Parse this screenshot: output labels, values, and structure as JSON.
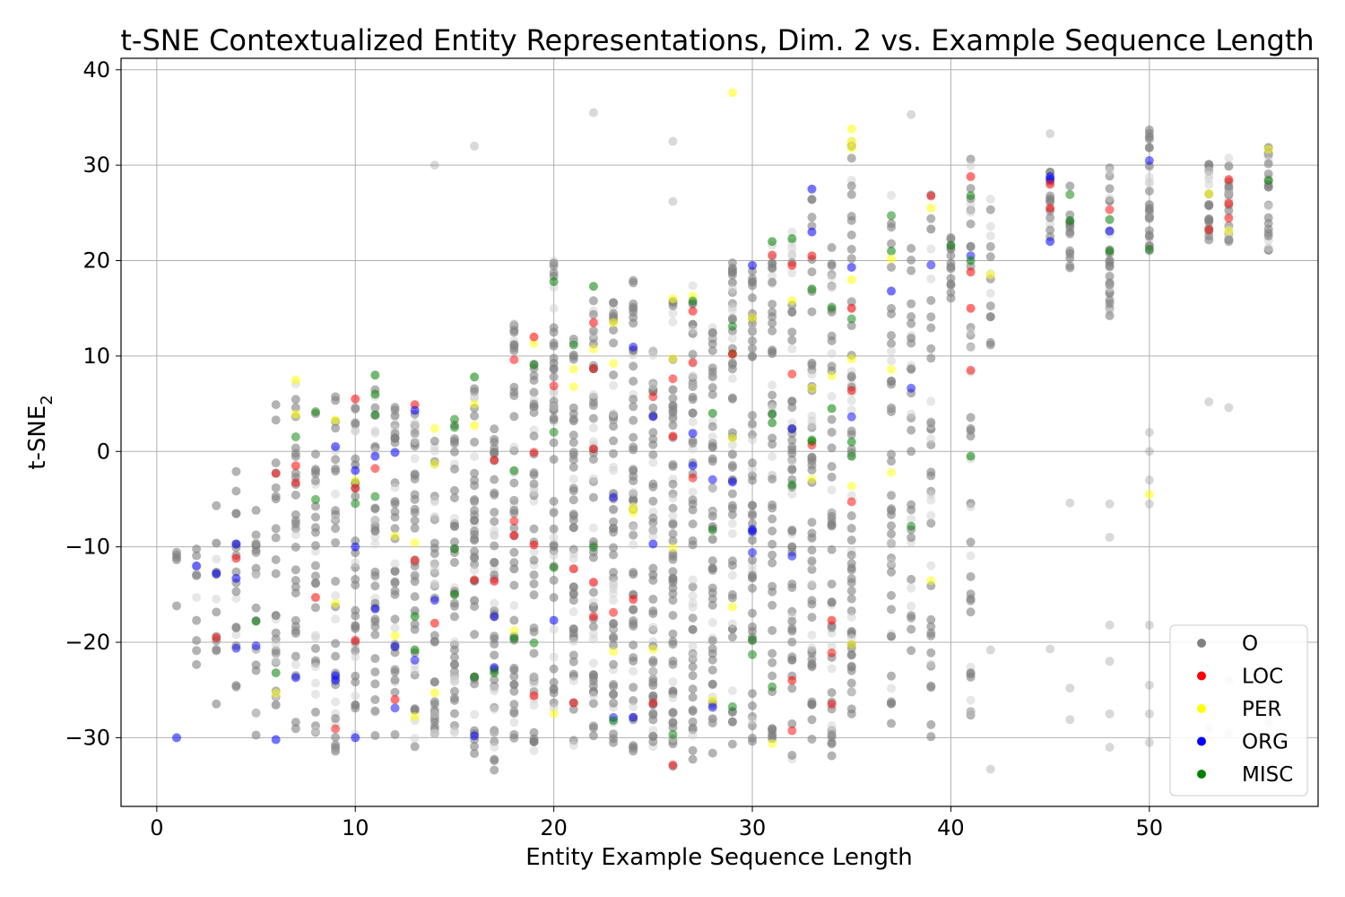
{
  "chart_data": {
    "type": "scatter",
    "title": "t-SNE Contextualized Entity Representations, Dim. 2 vs. Example Sequence Length",
    "xlabel": "Entity Example Sequence Length",
    "ylabel": "t-SNE",
    "ylabel_subscript": "2",
    "xlim": [
      -1.8,
      58.5
    ],
    "ylim": [
      -37.2,
      41.2
    ],
    "xticks": [
      0,
      10,
      20,
      30,
      40,
      50
    ],
    "xtick_labels": [
      "0",
      "10",
      "20",
      "30",
      "40",
      "50"
    ],
    "yticks": [
      -30,
      -20,
      -10,
      0,
      10,
      20,
      30,
      40
    ],
    "ytick_labels": [
      "−30",
      "−20",
      "−10",
      "0",
      "10",
      "20",
      "30",
      "40"
    ],
    "grid": true,
    "legend_position": "bottom-right",
    "legend": [
      {
        "label": "O",
        "color": "#808080"
      },
      {
        "label": "LOC",
        "color": "#ff0000"
      },
      {
        "label": "PER",
        "color": "#ffff00"
      },
      {
        "label": "ORG",
        "color": "#0000ff"
      },
      {
        "label": "MISC",
        "color": "#008000"
      }
    ],
    "columns": [
      {
        "x": 1,
        "lo": -18,
        "hi": -7.5,
        "n": 5
      },
      {
        "x": 2,
        "lo": -24,
        "hi": -9,
        "n": 10
      },
      {
        "x": 3,
        "lo": -30.5,
        "hi": -5,
        "n": 14
      },
      {
        "x": 4,
        "lo": -25,
        "hi": -2,
        "n": 18
      },
      {
        "x": 5,
        "lo": -30,
        "hi": 0,
        "n": 20
      },
      {
        "x": 6,
        "lo": -30,
        "hi": 6,
        "n": 26
      },
      {
        "x": 7,
        "lo": -30,
        "hi": 8,
        "n": 30
      },
      {
        "x": 8,
        "lo": -31,
        "hi": 5,
        "n": 30
      },
      {
        "x": 9,
        "lo": -32,
        "hi": 6,
        "n": 34
      },
      {
        "x": 10,
        "lo": -32,
        "hi": 6,
        "n": 36
      },
      {
        "x": 11,
        "lo": -30,
        "hi": 8,
        "n": 38
      },
      {
        "x": 12,
        "lo": -30,
        "hi": 5,
        "n": 38
      },
      {
        "x": 13,
        "lo": -31,
        "hi": 5,
        "n": 42
      },
      {
        "x": 14,
        "lo": -30,
        "hi": 4,
        "n": 40
      },
      {
        "x": 15,
        "lo": -30,
        "hi": 3.5,
        "n": 42
      },
      {
        "x": 16,
        "lo": -32,
        "hi": 8,
        "n": 44
      },
      {
        "x": 17,
        "lo": -33.5,
        "hi": 3.5,
        "n": 46
      },
      {
        "x": 18,
        "lo": -31,
        "hi": 15,
        "n": 48
      },
      {
        "x": 19,
        "lo": -32,
        "hi": 12,
        "n": 50
      },
      {
        "x": 20,
        "lo": -31,
        "hi": 20,
        "n": 52
      },
      {
        "x": 21,
        "lo": -31,
        "hi": 12,
        "n": 50
      },
      {
        "x": 22,
        "lo": -32,
        "hi": 17.5,
        "n": 55
      },
      {
        "x": 23,
        "lo": -32,
        "hi": 17,
        "n": 60
      },
      {
        "x": 24,
        "lo": -32,
        "hi": 19,
        "n": 58
      },
      {
        "x": 25,
        "lo": -31,
        "hi": 11,
        "n": 56
      },
      {
        "x": 26,
        "lo": -33,
        "hi": 16.5,
        "n": 62
      },
      {
        "x": 27,
        "lo": -33,
        "hi": 18,
        "n": 58
      },
      {
        "x": 28,
        "lo": -32,
        "hi": 14,
        "n": 55
      },
      {
        "x": 29,
        "lo": -32,
        "hi": 20,
        "n": 56
      },
      {
        "x": 30,
        "lo": -32,
        "hi": 20,
        "n": 52
      },
      {
        "x": 31,
        "lo": -31,
        "hi": 22,
        "n": 52
      },
      {
        "x": 32,
        "lo": -33,
        "hi": 23,
        "n": 54
      },
      {
        "x": 33,
        "lo": -32,
        "hi": 28,
        "n": 54
      },
      {
        "x": 34,
        "lo": -32,
        "hi": 22.5,
        "n": 50
      },
      {
        "x": 35,
        "lo": -31,
        "hi": 34,
        "n": 60
      },
      {
        "x": 37,
        "lo": -30.5,
        "hi": 27,
        "n": 42
      },
      {
        "x": 38,
        "lo": -21,
        "hi": 23,
        "n": 30
      },
      {
        "x": 39,
        "lo": -30,
        "hi": 27,
        "n": 40
      },
      {
        "x": 40,
        "lo": 15.5,
        "hi": 22.5,
        "n": 16
      },
      {
        "x": 41,
        "lo": -31,
        "hi": 32.5,
        "n": 40
      },
      {
        "x": 42,
        "lo": 10,
        "hi": 26.5,
        "n": 14
      },
      {
        "x": 45,
        "lo": 19.5,
        "hi": 29.5,
        "n": 14
      },
      {
        "x": 46,
        "lo": 19,
        "hi": 28.5,
        "n": 14
      },
      {
        "x": 48,
        "lo": 14,
        "hi": 30.5,
        "n": 28
      },
      {
        "x": 50,
        "lo": 20.5,
        "hi": 34,
        "n": 30
      },
      {
        "x": 53,
        "lo": 22,
        "hi": 32,
        "n": 20
      },
      {
        "x": 54,
        "lo": 21.5,
        "hi": 31,
        "n": 24
      },
      {
        "x": 56,
        "lo": 21,
        "hi": 32,
        "n": 26
      }
    ],
    "outliers": [
      {
        "x": 1,
        "y": -30,
        "label": "ORG"
      },
      {
        "x": 6,
        "y": -30.2,
        "label": "ORG"
      },
      {
        "x": 29,
        "y": 37.6,
        "label": "PER"
      },
      {
        "x": 22,
        "y": 35.5,
        "label": "O"
      },
      {
        "x": 14,
        "y": 30,
        "label": "O"
      },
      {
        "x": 16,
        "y": 32,
        "label": "O"
      },
      {
        "x": 26,
        "y": 32.5,
        "label": "O"
      },
      {
        "x": 26,
        "y": 26.2,
        "label": "O"
      },
      {
        "x": 38,
        "y": 35.3,
        "label": "O"
      },
      {
        "x": 45,
        "y": 33.3,
        "label": "O"
      },
      {
        "x": 53,
        "y": 5.2,
        "label": "O"
      },
      {
        "x": 54,
        "y": 4.6,
        "label": "O"
      },
      {
        "x": 46,
        "y": -5.4,
        "label": "O"
      },
      {
        "x": 46,
        "y": -24.8,
        "label": "O"
      },
      {
        "x": 46,
        "y": -28.1,
        "label": "O"
      },
      {
        "x": 45,
        "y": -20.7,
        "label": "O"
      },
      {
        "x": 48,
        "y": -5.5,
        "label": "O"
      },
      {
        "x": 48,
        "y": -9,
        "label": "O"
      },
      {
        "x": 48,
        "y": -18.2,
        "label": "O"
      },
      {
        "x": 48,
        "y": -22,
        "label": "O"
      },
      {
        "x": 48,
        "y": -27.5,
        "label": "O"
      },
      {
        "x": 48,
        "y": -31,
        "label": "O"
      },
      {
        "x": 50,
        "y": 2,
        "label": "O"
      },
      {
        "x": 50,
        "y": 0,
        "label": "O"
      },
      {
        "x": 50,
        "y": -3,
        "label": "O"
      },
      {
        "x": 50,
        "y": -4.5,
        "label": "PER"
      },
      {
        "x": 50,
        "y": -5.5,
        "label": "O"
      },
      {
        "x": 50,
        "y": -18.2,
        "label": "O"
      },
      {
        "x": 50,
        "y": -24.5,
        "label": "O"
      },
      {
        "x": 50,
        "y": -27.5,
        "label": "O"
      },
      {
        "x": 50,
        "y": -30.5,
        "label": "O"
      },
      {
        "x": 53,
        "y": -29,
        "label": "O"
      },
      {
        "x": 54,
        "y": -24,
        "label": "O"
      },
      {
        "x": 54,
        "y": -29.5,
        "label": "O"
      },
      {
        "x": 56,
        "y": -28.5,
        "label": "O"
      },
      {
        "x": 42,
        "y": -20.8,
        "label": "O"
      },
      {
        "x": 42,
        "y": -33.3,
        "label": "O"
      },
      {
        "x": 41,
        "y": -0.5,
        "label": "MISC"
      },
      {
        "x": 35,
        "y": 33.8,
        "label": "PER"
      },
      {
        "x": 35,
        "y": 32.5,
        "label": "PER"
      },
      {
        "x": 35,
        "y": 31.8,
        "label": "PER"
      },
      {
        "x": 7,
        "y": 7.5,
        "label": "PER"
      },
      {
        "x": 7,
        "y": 3.9,
        "label": "PER"
      },
      {
        "x": 9,
        "y": 3.3,
        "label": "PER"
      },
      {
        "x": 10,
        "y": 5.5,
        "label": "LOC"
      },
      {
        "x": 11,
        "y": 8,
        "label": "MISC"
      },
      {
        "x": 11,
        "y": 6,
        "label": "MISC"
      },
      {
        "x": 12,
        "y": -0.1,
        "label": "ORG"
      },
      {
        "x": 13,
        "y": 4.9,
        "label": "LOC"
      },
      {
        "x": 13,
        "y": 4.3,
        "label": "ORG"
      },
      {
        "x": 16,
        "y": 7.8,
        "label": "MISC"
      },
      {
        "x": 16,
        "y": 2.7,
        "label": "PER"
      },
      {
        "x": 19,
        "y": 12,
        "label": "LOC"
      },
      {
        "x": 20,
        "y": 17.8,
        "label": "MISC"
      },
      {
        "x": 22,
        "y": 17.3,
        "label": "MISC"
      },
      {
        "x": 22,
        "y": 13.5,
        "label": "LOC"
      },
      {
        "x": 23,
        "y": 13.5,
        "label": "PER"
      },
      {
        "x": 26,
        "y": 16,
        "label": "PER"
      },
      {
        "x": 27,
        "y": 14.7,
        "label": "LOC"
      },
      {
        "x": 29,
        "y": 10.2,
        "label": "LOC"
      },
      {
        "x": 30,
        "y": 19.5,
        "label": "ORG"
      },
      {
        "x": 30,
        "y": 14,
        "label": "PER"
      },
      {
        "x": 31,
        "y": 22,
        "label": "MISC"
      },
      {
        "x": 32,
        "y": 22.3,
        "label": "MISC"
      },
      {
        "x": 32,
        "y": 19.5,
        "label": "LOC"
      },
      {
        "x": 32,
        "y": 15.8,
        "label": "PER"
      },
      {
        "x": 33,
        "y": 27.5,
        "label": "ORG"
      },
      {
        "x": 33,
        "y": 23,
        "label": "ORG"
      },
      {
        "x": 33,
        "y": 20.5,
        "label": "LOC"
      },
      {
        "x": 33,
        "y": 17,
        "label": "MISC"
      },
      {
        "x": 35,
        "y": 19.3,
        "label": "ORG"
      },
      {
        "x": 35,
        "y": 18,
        "label": "PER"
      },
      {
        "x": 35,
        "y": 15,
        "label": "LOC"
      },
      {
        "x": 35,
        "y": 9.7,
        "label": "PER"
      },
      {
        "x": 35,
        "y": 6.4,
        "label": "LOC"
      },
      {
        "x": 37,
        "y": 21,
        "label": "MISC"
      },
      {
        "x": 37,
        "y": 20.2,
        "label": "PER"
      },
      {
        "x": 37,
        "y": 16.8,
        "label": "ORG"
      },
      {
        "x": 39,
        "y": 25.5,
        "label": "PER"
      },
      {
        "x": 41,
        "y": 28.8,
        "label": "LOC"
      },
      {
        "x": 41,
        "y": 20,
        "label": "MISC"
      },
      {
        "x": 41,
        "y": 18.8,
        "label": "LOC"
      },
      {
        "x": 41,
        "y": 15,
        "label": "LOC"
      },
      {
        "x": 45,
        "y": 28.8,
        "label": "ORG"
      },
      {
        "x": 45,
        "y": 28,
        "label": "LOC"
      },
      {
        "x": 45,
        "y": 25.5,
        "label": "LOC"
      },
      {
        "x": 45,
        "y": 22,
        "label": "ORG"
      },
      {
        "x": 46,
        "y": 24.2,
        "label": "MISC"
      },
      {
        "x": 48,
        "y": 24.3,
        "label": "MISC"
      },
      {
        "x": 48,
        "y": 21,
        "label": "MISC"
      },
      {
        "x": 53,
        "y": 27,
        "label": "PER"
      },
      {
        "x": 54,
        "y": 28.5,
        "label": "LOC"
      },
      {
        "x": 54,
        "y": 26,
        "label": "LOC"
      },
      {
        "x": 34,
        "y": -17.7,
        "label": "LOC"
      },
      {
        "x": 32,
        "y": -24,
        "label": "LOC"
      },
      {
        "x": 29,
        "y": -16.3,
        "label": "PER"
      },
      {
        "x": 17,
        "y": -13.6,
        "label": "LOC"
      },
      {
        "x": 12,
        "y": -26,
        "label": "LOC"
      },
      {
        "x": 13,
        "y": -27.8,
        "label": "PER"
      },
      {
        "x": 14,
        "y": -25.3,
        "label": "PER"
      },
      {
        "x": 9,
        "y": -24,
        "label": "ORG"
      },
      {
        "x": 9,
        "y": -23.5,
        "label": "ORG"
      },
      {
        "x": 10,
        "y": -30,
        "label": "ORG"
      },
      {
        "x": 7,
        "y": -23.7,
        "label": "ORG"
      },
      {
        "x": 6,
        "y": -23.2,
        "label": "MISC"
      },
      {
        "x": 5,
        "y": -17.8,
        "label": "MISC"
      },
      {
        "x": 2,
        "y": -12,
        "label": "ORG"
      },
      {
        "x": 3,
        "y": -12.8,
        "label": "ORG"
      },
      {
        "x": 4,
        "y": -9.7,
        "label": "ORG"
      },
      {
        "x": 4,
        "y": -11.2,
        "label": "LOC"
      },
      {
        "x": 4,
        "y": -13.3,
        "label": "ORG"
      },
      {
        "x": 7,
        "y": -1.5,
        "label": "LOC"
      },
      {
        "x": 8,
        "y": -15.3,
        "label": "LOC"
      },
      {
        "x": 9,
        "y": 0.5,
        "label": "ORG"
      },
      {
        "x": 10,
        "y": -2,
        "label": "ORG"
      },
      {
        "x": 10,
        "y": -10,
        "label": "ORG"
      },
      {
        "x": 10,
        "y": -19.8,
        "label": "LOC"
      },
      {
        "x": 11,
        "y": -0.5,
        "label": "ORG"
      },
      {
        "x": 11,
        "y": -16.5,
        "label": "ORG"
      },
      {
        "x": 12,
        "y": -19.3,
        "label": "PER"
      },
      {
        "x": 13,
        "y": -17.3,
        "label": "MISC"
      },
      {
        "x": 13,
        "y": -20.8,
        "label": "MISC"
      },
      {
        "x": 14,
        "y": -18,
        "label": "LOC"
      },
      {
        "x": 15,
        "y": -15,
        "label": "MISC"
      },
      {
        "x": 16,
        "y": -29.8,
        "label": "ORG"
      },
      {
        "x": 17,
        "y": -23.2,
        "label": "MISC"
      },
      {
        "x": 18,
        "y": -8.8,
        "label": "LOC"
      },
      {
        "x": 18,
        "y": -19.6,
        "label": "MISC"
      },
      {
        "x": 19,
        "y": -9.8,
        "label": "LOC"
      },
      {
        "x": 19,
        "y": -25.6,
        "label": "LOC"
      },
      {
        "x": 20,
        "y": -17.7,
        "label": "ORG"
      },
      {
        "x": 21,
        "y": -12.3,
        "label": "LOC"
      },
      {
        "x": 22,
        "y": -13.7,
        "label": "LOC"
      },
      {
        "x": 22,
        "y": -17.3,
        "label": "LOC"
      },
      {
        "x": 23,
        "y": -28.2,
        "label": "MISC"
      },
      {
        "x": 24,
        "y": -15.5,
        "label": "LOC"
      },
      {
        "x": 25,
        "y": -9.7,
        "label": "ORG"
      },
      {
        "x": 26,
        "y": 1.6,
        "label": "LOC"
      },
      {
        "x": 27,
        "y": 1.9,
        "label": "ORG"
      },
      {
        "x": 27,
        "y": -1.5,
        "label": "ORG"
      },
      {
        "x": 28,
        "y": 4,
        "label": "MISC"
      },
      {
        "x": 29,
        "y": -3.2,
        "label": "ORG"
      },
      {
        "x": 30,
        "y": -8.4,
        "label": "ORG"
      },
      {
        "x": 31,
        "y": 3,
        "label": "MISC"
      },
      {
        "x": 32,
        "y": -3.5,
        "label": "MISC"
      },
      {
        "x": 33,
        "y": 1.2,
        "label": "MISC"
      },
      {
        "x": 34,
        "y": 4.5,
        "label": "MISC"
      },
      {
        "x": 35,
        "y": 1,
        "label": "MISC"
      },
      {
        "x": 35,
        "y": -0.5,
        "label": "MISC"
      }
    ]
  }
}
